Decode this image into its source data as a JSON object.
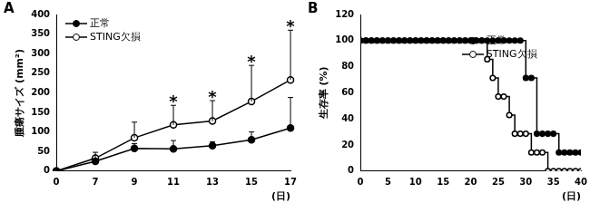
{
  "chart_data": [
    {
      "type": "line",
      "panel": "A",
      "y_label": "腫瘍サイズ (mm²)",
      "x_label": "(日)",
      "categories": [
        "0",
        "7",
        "9",
        "11",
        "13",
        "15",
        "17"
      ],
      "series": [
        {
          "name": "正常",
          "color": "#000000",
          "marker": "filled_circle",
          "values": [
            0,
            25,
            58,
            57,
            65,
            80,
            110
          ],
          "errors": [
            0,
            5,
            12,
            21,
            10,
            20,
            78
          ]
        },
        {
          "name": "STING欠損",
          "color": "#000000",
          "marker": "open_circle",
          "values": [
            0,
            33,
            85,
            118,
            128,
            178,
            233
          ],
          "errors": [
            0,
            15,
            40,
            50,
            52,
            92,
            127
          ]
        }
      ],
      "annotations": [
        {
          "category": "11",
          "text": "*"
        },
        {
          "category": "13",
          "text": "*"
        },
        {
          "category": "15",
          "text": "*"
        },
        {
          "category": "17",
          "text": "*"
        }
      ],
      "ylim": [
        0,
        400
      ],
      "yticks": [
        0,
        50,
        100,
        150,
        200,
        250,
        300,
        350,
        400
      ],
      "grid": false,
      "legend": "upper left"
    },
    {
      "type": "step",
      "panel": "B",
      "y_label": "生存率 (%)",
      "x_label": "(日)",
      "x": [
        0,
        1,
        2,
        3,
        4,
        5,
        6,
        7,
        8,
        9,
        10,
        11,
        12,
        13,
        14,
        15,
        16,
        17,
        18,
        19,
        20,
        21,
        22,
        23,
        24,
        25,
        26,
        27,
        28,
        29,
        30,
        31,
        32,
        33,
        34,
        35,
        36,
        37,
        38,
        39,
        40
      ],
      "series": [
        {
          "name": "正常",
          "color": "#000000",
          "marker": "filled_circle",
          "values": [
            100,
            100,
            100,
            100,
            100,
            100,
            100,
            100,
            100,
            100,
            100,
            100,
            100,
            100,
            100,
            100,
            100,
            100,
            100,
            100,
            100,
            100,
            100,
            100,
            100,
            100,
            100,
            100,
            100,
            100,
            71.4,
            71.4,
            28.6,
            28.6,
            28.6,
            28.6,
            14.3,
            14.3,
            14.3,
            14.3,
            14.3
          ]
        },
        {
          "name": "STING欠損",
          "color": "#000000",
          "marker": "open_circle",
          "values": [
            100,
            100,
            100,
            100,
            100,
            100,
            100,
            100,
            100,
            100,
            100,
            100,
            100,
            100,
            100,
            100,
            100,
            100,
            100,
            100,
            100,
            100,
            100,
            85.7,
            71.4,
            57.1,
            57.1,
            42.9,
            28.6,
            28.6,
            28.6,
            14.3,
            14.3,
            14.3,
            0,
            0,
            0,
            0,
            0,
            0,
            0
          ]
        }
      ],
      "xlim": [
        0,
        40
      ],
      "xticks": [
        0,
        5,
        10,
        15,
        20,
        25,
        30,
        35,
        40
      ],
      "ylim": [
        0,
        120
      ],
      "yticks": [
        0,
        20,
        40,
        60,
        80,
        100,
        120
      ],
      "grid": false,
      "legend": "right"
    }
  ]
}
